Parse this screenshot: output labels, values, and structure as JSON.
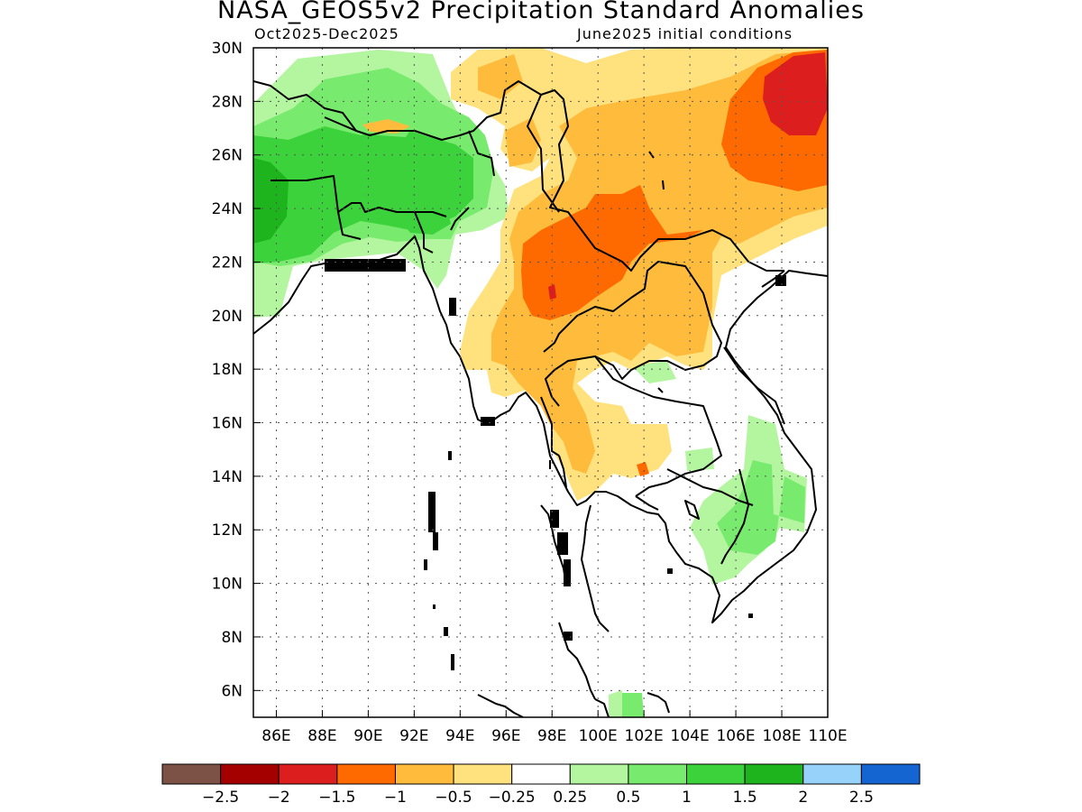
{
  "header": {
    "title": "NASA_GEOS5v2 Precipitation Standard Anomalies",
    "period": "Oct2025-Dec2025",
    "init": "June2025 initial conditions"
  },
  "map": {
    "lon_range": [
      85,
      110
    ],
    "lat_range": [
      5,
      30
    ],
    "x_ticks": [
      "86E",
      "88E",
      "90E",
      "92E",
      "94E",
      "96E",
      "98E",
      "100E",
      "102E",
      "104E",
      "106E",
      "108E",
      "110E"
    ],
    "y_ticks": [
      "30N",
      "28N",
      "26N",
      "24N",
      "22N",
      "20N",
      "18N",
      "16N",
      "14N",
      "12N",
      "10N",
      "8N",
      "6N"
    ],
    "grid": "dotted"
  },
  "colorbar": {
    "colors": [
      "#7c5246",
      "#a50000",
      "#dc1e1e",
      "#ff6a00",
      "#ffbb3c",
      "#ffe27d",
      "#ffffff",
      "#b4f5a0",
      "#78eb6e",
      "#3cd23c",
      "#1eb41e",
      "#96d2fa",
      "#1464d2"
    ],
    "labels": [
      "-2.5",
      "-2",
      "-1.5",
      "-1",
      "-0.5",
      "-0.25",
      "0.25",
      "0.5",
      "1",
      "1.5",
      "2",
      "2.5"
    ]
  }
}
